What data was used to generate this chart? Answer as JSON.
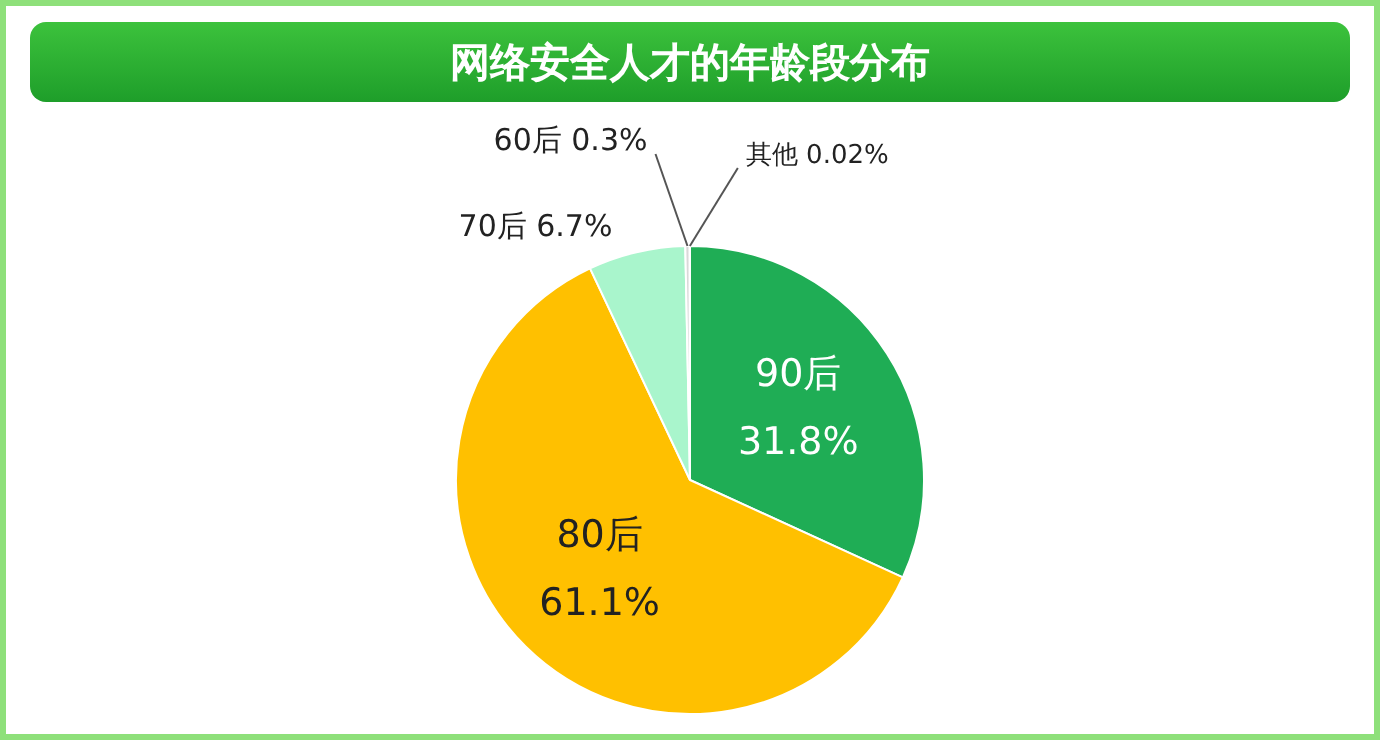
{
  "chart_data": {
    "type": "pie",
    "title": "网络安全人才的年龄段分布",
    "categories": [
      "90后",
      "80后",
      "70后",
      "60后",
      "其他"
    ],
    "values": [
      31.8,
      61.1,
      6.7,
      0.3,
      0.02
    ],
    "value_labels": [
      "31.8%",
      "61.1%",
      "6.7%",
      "0.3%",
      "0.02%"
    ],
    "colors": [
      "#1fad55",
      "#ffc000",
      "#a9f5cc",
      "#d9d9d9",
      "#8fd3f5"
    ],
    "legend": false
  }
}
